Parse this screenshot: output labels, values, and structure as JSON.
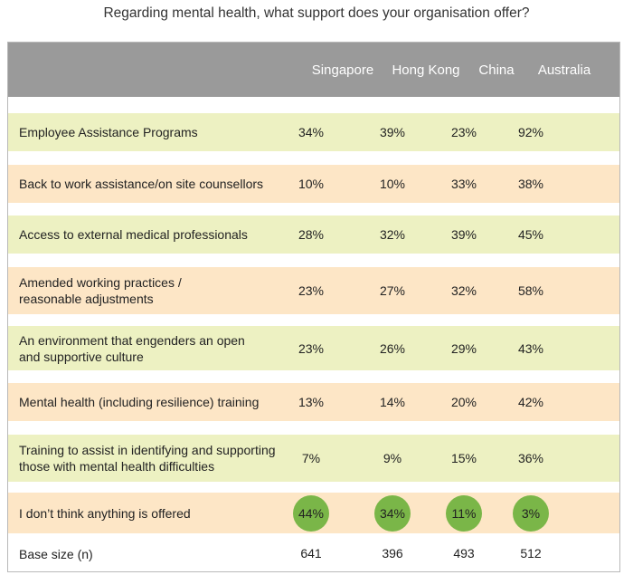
{
  "chart_data": {
    "type": "table",
    "title": "Regarding mental health, what support does your organisation offer?",
    "columns": [
      "Singapore",
      "Hong Kong",
      "China",
      "Australia"
    ],
    "rows": [
      {
        "label": "Employee Assistance Programs",
        "values": [
          "34%",
          "39%",
          "23%",
          "92%"
        ],
        "highlight": false
      },
      {
        "label": "Back to work assistance/on site counsellors",
        "values": [
          "10%",
          "10%",
          "33%",
          "38%"
        ],
        "highlight": false
      },
      {
        "label": "Access to external medical professionals",
        "values": [
          "28%",
          "32%",
          "39%",
          "45%"
        ],
        "highlight": false
      },
      {
        "label": "Amended working practices / reasonable adjustments",
        "values": [
          "23%",
          "27%",
          "32%",
          "58%"
        ],
        "highlight": false
      },
      {
        "label": "An environment that engenders an open and supportive culture",
        "values": [
          "23%",
          "26%",
          "29%",
          "43%"
        ],
        "highlight": false
      },
      {
        "label": "Mental health (including resilience) training",
        "values": [
          "13%",
          "14%",
          "20%",
          "42%"
        ],
        "highlight": false
      },
      {
        "label": "Training to assist in identifying and supporting those with mental health difficulties",
        "values": [
          "7%",
          "9%",
          "15%",
          "36%"
        ],
        "highlight": false
      },
      {
        "label": "I don’t think anything is offered",
        "values": [
          "44%",
          "34%",
          "11%",
          "3%"
        ],
        "highlight": true
      }
    ],
    "base": {
      "label": "Base size (n)",
      "values": [
        "641",
        "396",
        "493",
        "512"
      ]
    },
    "colors": {
      "header": "#9a9a9a",
      "row_green": "#edf1c2",
      "row_orange": "#fde6c6",
      "highlight_circle": "#7ab648"
    }
  }
}
